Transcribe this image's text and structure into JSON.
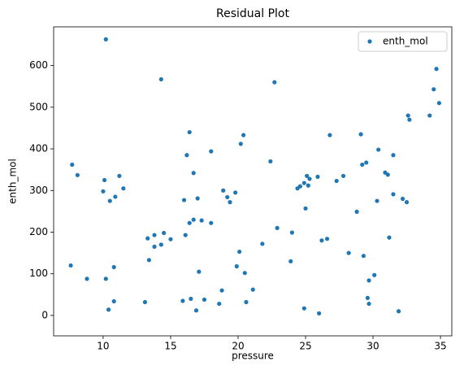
{
  "chart_data": {
    "type": "scatter",
    "title": "Residual Plot",
    "x_label": "pressure",
    "y_label": "enth_mol",
    "legend": "upper right",
    "xlim": [
      6.33,
      35.84
    ],
    "ylim": [
      -49,
      693
    ],
    "xticks": [
      10,
      15,
      20,
      25,
      30,
      35
    ],
    "yticks": [
      0,
      100,
      200,
      300,
      400,
      500,
      600
    ],
    "series": [
      {
        "name": "enth_mol",
        "color": "#1f77b4",
        "x": [
          7.6,
          7.7,
          8.1,
          8.8,
          10.0,
          10.1,
          10.2,
          10.2,
          10.4,
          10.5,
          10.8,
          10.8,
          10.9,
          11.2,
          11.5,
          13.1,
          13.3,
          13.4,
          13.8,
          13.8,
          14.3,
          14.3,
          14.5,
          15.0,
          15.9,
          16.0,
          16.1,
          16.2,
          16.4,
          16.4,
          16.5,
          16.7,
          16.7,
          16.9,
          17.0,
          17.1,
          17.3,
          17.5,
          18.0,
          18.0,
          18.6,
          18.8,
          18.9,
          19.2,
          19.4,
          19.8,
          19.9,
          20.1,
          20.2,
          20.4,
          20.5,
          20.6,
          21.1,
          21.8,
          22.4,
          22.7,
          22.9,
          23.9,
          24.0,
          24.4,
          24.6,
          24.9,
          24.9,
          25.0,
          25.1,
          25.3,
          25.2,
          25.9,
          26.0,
          26.2,
          26.6,
          26.8,
          27.3,
          27.8,
          28.2,
          28.8,
          29.1,
          29.2,
          29.3,
          29.5,
          29.6,
          29.7,
          29.7,
          30.1,
          30.3,
          30.4,
          30.9,
          31.1,
          31.2,
          31.5,
          31.5,
          31.9,
          32.2,
          32.5,
          32.6,
          32.7,
          34.2,
          34.5,
          34.7,
          34.9
        ],
        "values": [
          120,
          362,
          337,
          88,
          298,
          325,
          88,
          663,
          14,
          275,
          34,
          116,
          285,
          335,
          305,
          32,
          185,
          133,
          193,
          165,
          567,
          170,
          198,
          183,
          35,
          277,
          193,
          385,
          222,
          440,
          40,
          342,
          230,
          12,
          281,
          105,
          228,
          38,
          394,
          222,
          28,
          60,
          300,
          284,
          272,
          295,
          118,
          153,
          412,
          433,
          102,
          32,
          62,
          172,
          370,
          560,
          210,
          130,
          199,
          305,
          310,
          318,
          17,
          257,
          335,
          328,
          312,
          333,
          5,
          180,
          184,
          433,
          323,
          335,
          150,
          249,
          435,
          362,
          143,
          367,
          42,
          28,
          84,
          97,
          275,
          398,
          343,
          338,
          187,
          385,
          291,
          10,
          280,
          272,
          480,
          470,
          480,
          543,
          592,
          510
        ]
      }
    ]
  }
}
